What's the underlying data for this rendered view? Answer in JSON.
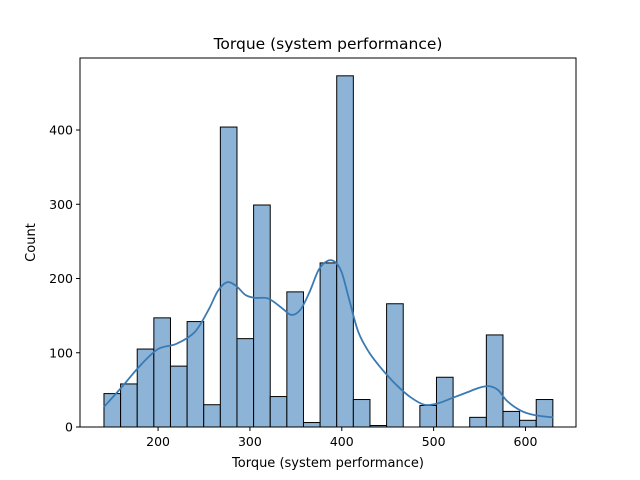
{
  "chart_data": {
    "type": "bar",
    "title": "Torque (system performance)",
    "xlabel": "Torque (system performance)",
    "ylabel": "Count",
    "xlim": [
      115,
      655
    ],
    "ylim": [
      0,
      497
    ],
    "xticks": [
      200,
      300,
      400,
      500,
      600
    ],
    "yticks": [
      0,
      100,
      200,
      300,
      400
    ],
    "bin_width": 18.1,
    "bins": [
      {
        "x0": 141.1,
        "count": 45
      },
      {
        "x0": 159.2,
        "count": 58
      },
      {
        "x0": 177.3,
        "count": 105
      },
      {
        "x0": 195.4,
        "count": 147
      },
      {
        "x0": 213.5,
        "count": 82
      },
      {
        "x0": 231.6,
        "count": 142
      },
      {
        "x0": 249.7,
        "count": 30
      },
      {
        "x0": 267.8,
        "count": 404
      },
      {
        "x0": 285.9,
        "count": 119
      },
      {
        "x0": 304.0,
        "count": 299
      },
      {
        "x0": 322.1,
        "count": 41
      },
      {
        "x0": 340.2,
        "count": 182
      },
      {
        "x0": 358.3,
        "count": 6
      },
      {
        "x0": 376.4,
        "count": 221
      },
      {
        "x0": 394.5,
        "count": 473
      },
      {
        "x0": 412.6,
        "count": 37
      },
      {
        "x0": 430.7,
        "count": 2
      },
      {
        "x0": 448.8,
        "count": 166
      },
      {
        "x0": 466.9,
        "count": 0
      },
      {
        "x0": 485.0,
        "count": 29
      },
      {
        "x0": 503.1,
        "count": 67
      },
      {
        "x0": 521.2,
        "count": 0
      },
      {
        "x0": 539.3,
        "count": 13
      },
      {
        "x0": 557.4,
        "count": 124
      },
      {
        "x0": 575.5,
        "count": 21
      },
      {
        "x0": 593.6,
        "count": 9
      },
      {
        "x0": 611.7,
        "count": 37
      }
    ],
    "kde": {
      "x": [
        141,
        160,
        180,
        200,
        220,
        240,
        255,
        265,
        275,
        285,
        295,
        305,
        320,
        335,
        345,
        355,
        365,
        375,
        385,
        393,
        400,
        408,
        418,
        430,
        445,
        460,
        475,
        490,
        505,
        520,
        535,
        550,
        560,
        570,
        580,
        595,
        610,
        630
      ],
      "y": [
        27,
        53,
        82,
        105,
        112,
        128,
        158,
        183,
        195,
        190,
        178,
        174,
        173,
        160,
        151,
        158,
        182,
        212,
        224,
        222,
        208,
        172,
        128,
        100,
        76,
        56,
        40,
        30,
        32,
        39,
        46,
        53,
        55,
        50,
        35,
        22,
        16,
        13
      ]
    },
    "bar_color": "#8db4d6",
    "bar_edge_color": "#000000",
    "line_color": "#3a7ab3",
    "grid": false
  }
}
